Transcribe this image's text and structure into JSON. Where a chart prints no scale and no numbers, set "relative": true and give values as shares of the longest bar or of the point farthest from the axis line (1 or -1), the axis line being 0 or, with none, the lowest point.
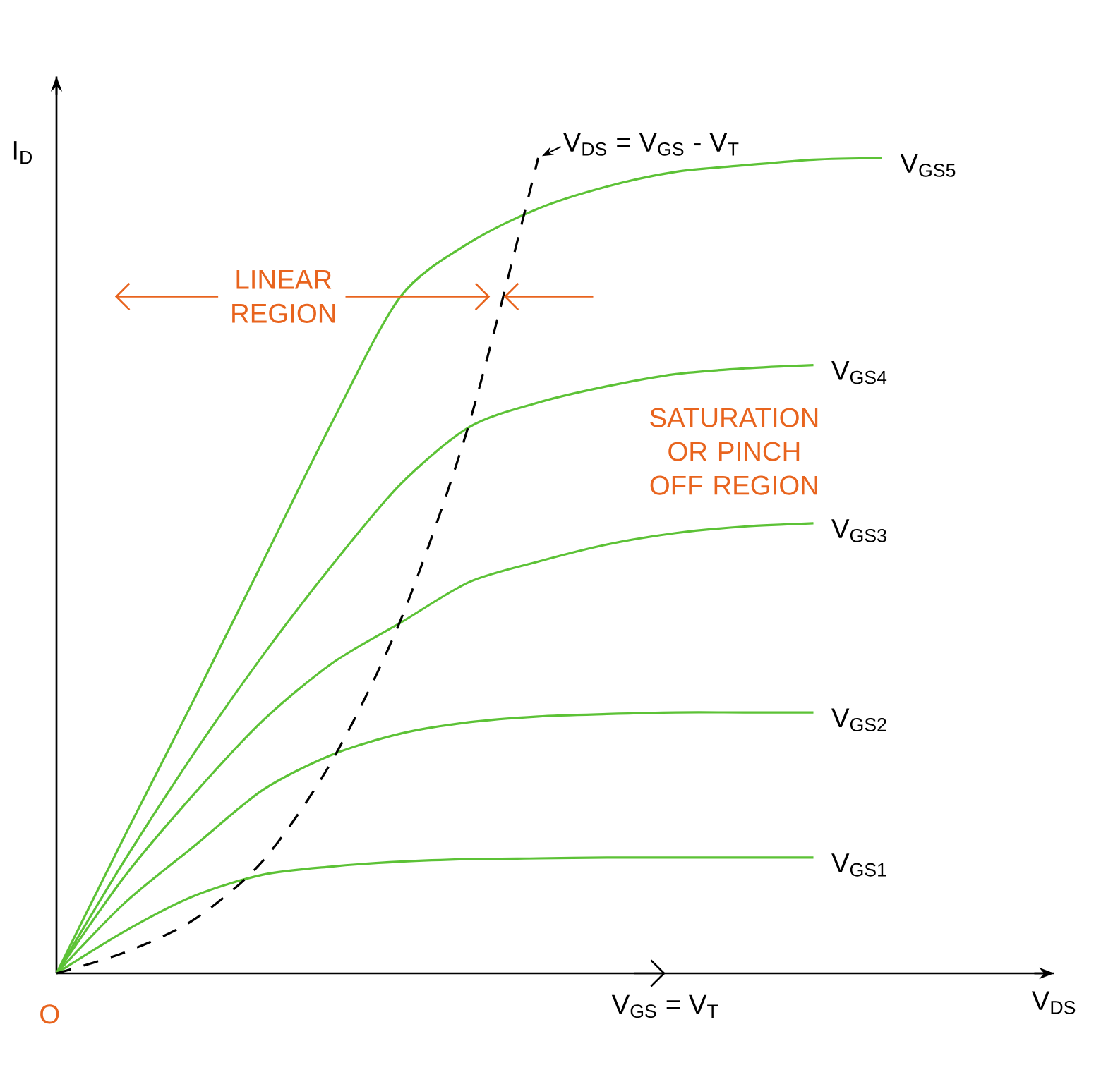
{
  "chart_data": {
    "type": "line",
    "relative": true,
    "xlabel": "V$_{DS}$",
    "ylabel": "I$_{D}$",
    "categories": [
      null,
      null,
      null,
      null,
      null,
      null,
      null,
      null,
      null,
      null,
      null,
      null,
      null
    ],
    "series": [
      {
        "name": "V$_{GS5}$",
        "color": "#5cc236",
        "values": [
          0,
          0.17,
          0.336,
          0.505,
          0.675,
          0.83,
          0.896,
          0.938,
          0.965,
          0.983,
          0.991,
          0.998,
          1
        ]
      },
      {
        "name": "V$_{GS4}$",
        "color": "#5cc236",
        "values": [
          0,
          0.14,
          0.27,
          0.39,
          0.5,
          0.6,
          0.67,
          0.7,
          0.72,
          0.735,
          0.742,
          0.746,
          null
        ]
      },
      {
        "name": "V$_{GS3}$",
        "color": "#5cc236",
        "values": [
          0,
          0.12,
          0.22,
          0.31,
          0.38,
          0.43,
          0.48,
          0.505,
          0.526,
          0.54,
          0.548,
          0.552,
          null
        ]
      },
      {
        "name": "V$_{GS2}$",
        "color": "#5cc236",
        "values": [
          0,
          0.087,
          0.156,
          0.225,
          0.268,
          0.294,
          0.308,
          0.315,
          0.318,
          0.32,
          0.32,
          0.32,
          null
        ]
      },
      {
        "name": "V$_{GS1}$",
        "color": "#5cc236",
        "values": [
          0,
          0.052,
          0.095,
          0.121,
          0.131,
          0.137,
          0.14,
          0.141,
          0.142,
          0.142,
          0.142,
          0.142,
          null
        ]
      },
      {
        "name": "V$_{DS}$ = V$_{GS}$ - V$_{T}$",
        "color": "#000000",
        "line_style": "dashed",
        "values": [
          0,
          0.026,
          0.066,
          0.138,
          0.26,
          0.433,
          0.675,
          1,
          null,
          null,
          null,
          null,
          null
        ]
      }
    ],
    "annotations": [
      "LINEAR REGION",
      "SATURATION OR PINCH OFF REGION",
      "O",
      "V$_{GS}$ = V$_{T}$"
    ]
  }
}
